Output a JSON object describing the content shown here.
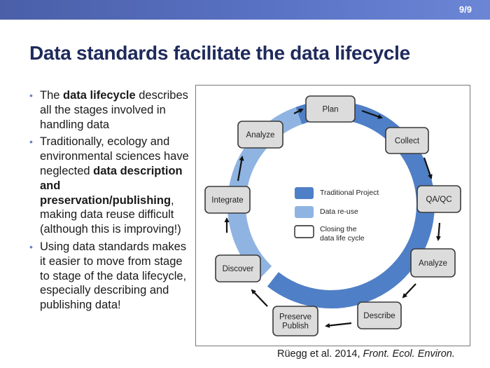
{
  "slide": {
    "page_number": "9/9",
    "title": "Data standards facilitate the data lifecycle"
  },
  "bullets": [
    {
      "parts": [
        {
          "t": "The ",
          "b": false
        },
        {
          "t": "data lifecycle",
          "b": true
        },
        {
          "t": " describes all the stages involved in handling data",
          "b": false
        }
      ]
    },
    {
      "parts": [
        {
          "t": "Traditionally, ecology and environmental sciences have neglected ",
          "b": false
        },
        {
          "t": "data description and preservation/publishing",
          "b": true
        },
        {
          "t": ", making data reuse difficult (although this is improving!)",
          "b": false
        }
      ]
    },
    {
      "parts": [
        {
          "t": "Using data standards makes it easier to move from stage to stage of the data lifecycle, especially describing and publishing data!",
          "b": false
        }
      ]
    }
  ],
  "diagram": {
    "stages": [
      "Plan",
      "Collect",
      "QA/QC",
      "Analyze",
      "Describe",
      "Preserve\nPublish",
      "Discover",
      "Integrate",
      "Analyze"
    ],
    "legend": [
      "Traditional Project",
      "Data re-use",
      "Closing the\ndata life cycle"
    ],
    "colors": {
      "traditional": "#4f7fc6",
      "reuse": "#8fb4e2",
      "box_fill": "#dcdcdc",
      "box_border": "#3a3a3a"
    }
  },
  "citation": {
    "authors": "Rüegg et al. 2014, ",
    "journal": "Front. Ecol. Environ."
  }
}
